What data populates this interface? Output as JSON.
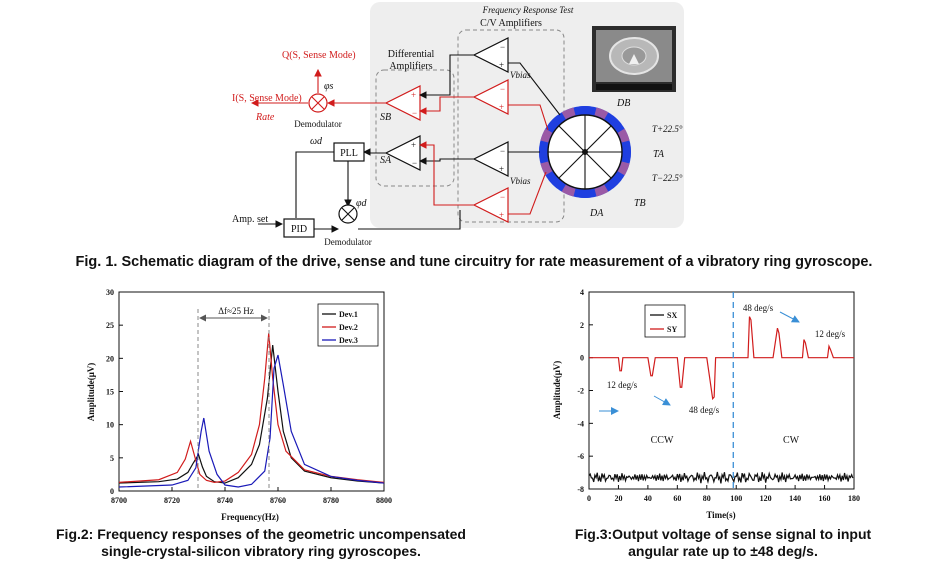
{
  "figure1": {
    "caption": "Fig. 1. Schematic diagram of the drive, sense and tune circuitry for rate measurement of a vibratory ring gyroscope.",
    "freq_test_label": "Frequency Response Test",
    "cv_amplifiers_label": "C/V Amplifiers",
    "diff_amplifiers_label": [
      "Differential",
      "Amplifiers"
    ],
    "q_output": "Q(S, Sense Mode)",
    "i_output": "I(S, Sense Mode)",
    "rate_label": "Rate",
    "phi_s": "φs",
    "demodulator_top": "Demodulator",
    "demodulator_bottom": "Demodulator",
    "omega_d": "ωd",
    "phi_d": "φd",
    "pll_label": "PLL",
    "pid_label": "PID",
    "amp_set": "Amp. set",
    "s_b": "SB",
    "s_a": "SA",
    "v_bias": "Vbias",
    "electrodes": {
      "db": "DB",
      "t_plus": "T+22.5°",
      "ta": "TA",
      "t_minus": "T−22.5°",
      "tb": "TB",
      "da": "DA"
    },
    "colors": {
      "signal_red": "#d11c1c",
      "electrode_blue": "#1f3fe0",
      "electrode_purple": "#9a5aa6",
      "panel_gray": "#eeeeee"
    }
  },
  "figure2": {
    "caption_lines": [
      "Fig.2: Frequency responses of the geometric uncompensated",
      "single-crystal-silicon vibratory ring gyroscopes."
    ],
    "annotation": "Δf≈25 Hz",
    "chart_data": {
      "type": "line",
      "xlabel": "Frequency(Hz)",
      "ylabel": "Amplitude(μV)",
      "xlim": [
        8700,
        8800
      ],
      "ylim": [
        0,
        30
      ],
      "xticks": [
        8700,
        8720,
        8740,
        8760,
        8780,
        8800
      ],
      "yticks": [
        0,
        5,
        10,
        15,
        20,
        25,
        30
      ],
      "legend": "top-right",
      "series": [
        {
          "name": "Dev.1",
          "color": "#111111",
          "x": [
            8700,
            8715,
            8722,
            8726,
            8728,
            8730,
            8731.5,
            8733,
            8736,
            8740,
            8745,
            8750,
            8753,
            8756,
            8758,
            8760,
            8762,
            8765,
            8770,
            8780,
            8790,
            8800
          ],
          "y": [
            1.2,
            1.4,
            1.8,
            2.8,
            4.2,
            5.5,
            3.6,
            2.2,
            1.4,
            1.2,
            2.0,
            4.0,
            7.0,
            14.0,
            22.0,
            15.0,
            9.0,
            5.0,
            3.0,
            2.0,
            1.5,
            1.2
          ]
        },
        {
          "name": "Dev.2",
          "color": "#d11c1c",
          "x": [
            8700,
            8715,
            8722,
            8725,
            8727,
            8729,
            8730.5,
            8733,
            8736,
            8740,
            8745,
            8750,
            8753,
            8755,
            8756.5,
            8758,
            8760,
            8763,
            8770,
            8780,
            8790,
            8800
          ],
          "y": [
            1.3,
            1.7,
            2.8,
            4.8,
            7.5,
            4.6,
            2.5,
            1.6,
            1.3,
            1.5,
            2.8,
            5.5,
            10.0,
            17.0,
            23.8,
            17.0,
            10.0,
            6.0,
            3.2,
            2.2,
            1.7,
            1.3
          ]
        },
        {
          "name": "Dev.3",
          "color": "#1a1ab8",
          "x": [
            8700,
            8720,
            8726,
            8729,
            8731,
            8732,
            8734,
            8737,
            8740,
            8745,
            8750,
            8755,
            8757,
            8758.5,
            8760,
            8762,
            8765,
            8770,
            8780,
            8790,
            8800
          ],
          "y": [
            0.6,
            0.9,
            1.6,
            3.5,
            9.0,
            11.0,
            6.0,
            2.5,
            0.9,
            0.6,
            1.0,
            3.0,
            8.0,
            18.5,
            20.5,
            16.0,
            9.0,
            4.0,
            2.2,
            1.6,
            1.2
          ]
        }
      ]
    }
  },
  "figure3": {
    "caption_lines": [
      "Fig.3:Output voltage of sense signal to input",
      "angular rate up to ±48 deg/s."
    ],
    "annotations": {
      "ccw": "CCW",
      "cw": "CW",
      "ccw_12": "12 deg/s",
      "ccw_48": "48 deg/s",
      "cw_48": "48 deg/s",
      "cw_12": "12 deg/s"
    },
    "chart_data": {
      "type": "line",
      "xlabel": "Time(s)",
      "ylabel": "Amplitude(μV)",
      "xlim": [
        0,
        180
      ],
      "ylim": [
        -8,
        4
      ],
      "xticks": [
        0,
        20,
        40,
        60,
        80,
        100,
        120,
        140,
        160,
        180
      ],
      "yticks": [
        -8,
        -6,
        -4,
        -2,
        0,
        2,
        4
      ],
      "legend": "top-left",
      "divider_x": 98,
      "series": [
        {
          "name": "SX",
          "color": "#111111",
          "x": [
            0,
            180
          ],
          "y": [
            -7.3,
            -7.3
          ]
        },
        {
          "name": "SY",
          "color": "#d11c1c",
          "x": [
            0,
            20,
            21,
            22,
            23,
            25,
            40,
            42,
            43,
            45,
            60,
            62,
            63,
            65,
            80,
            84,
            85,
            86,
            88,
            100,
            108,
            109,
            110,
            112,
            125,
            128,
            129,
            131,
            145,
            146,
            147,
            149,
            162,
            163,
            164,
            166,
            180
          ],
          "y": [
            0,
            0,
            -0.8,
            -0.8,
            0,
            0,
            0,
            -1.1,
            -1.1,
            0,
            0,
            -1.8,
            -1.8,
            0,
            0,
            -2.5,
            -2.4,
            0,
            0,
            0,
            0,
            2.5,
            2.3,
            0,
            0,
            1.8,
            1.5,
            0,
            0,
            1.1,
            0.9,
            0,
            0,
            0.7,
            0.5,
            0,
            0
          ]
        }
      ]
    }
  }
}
